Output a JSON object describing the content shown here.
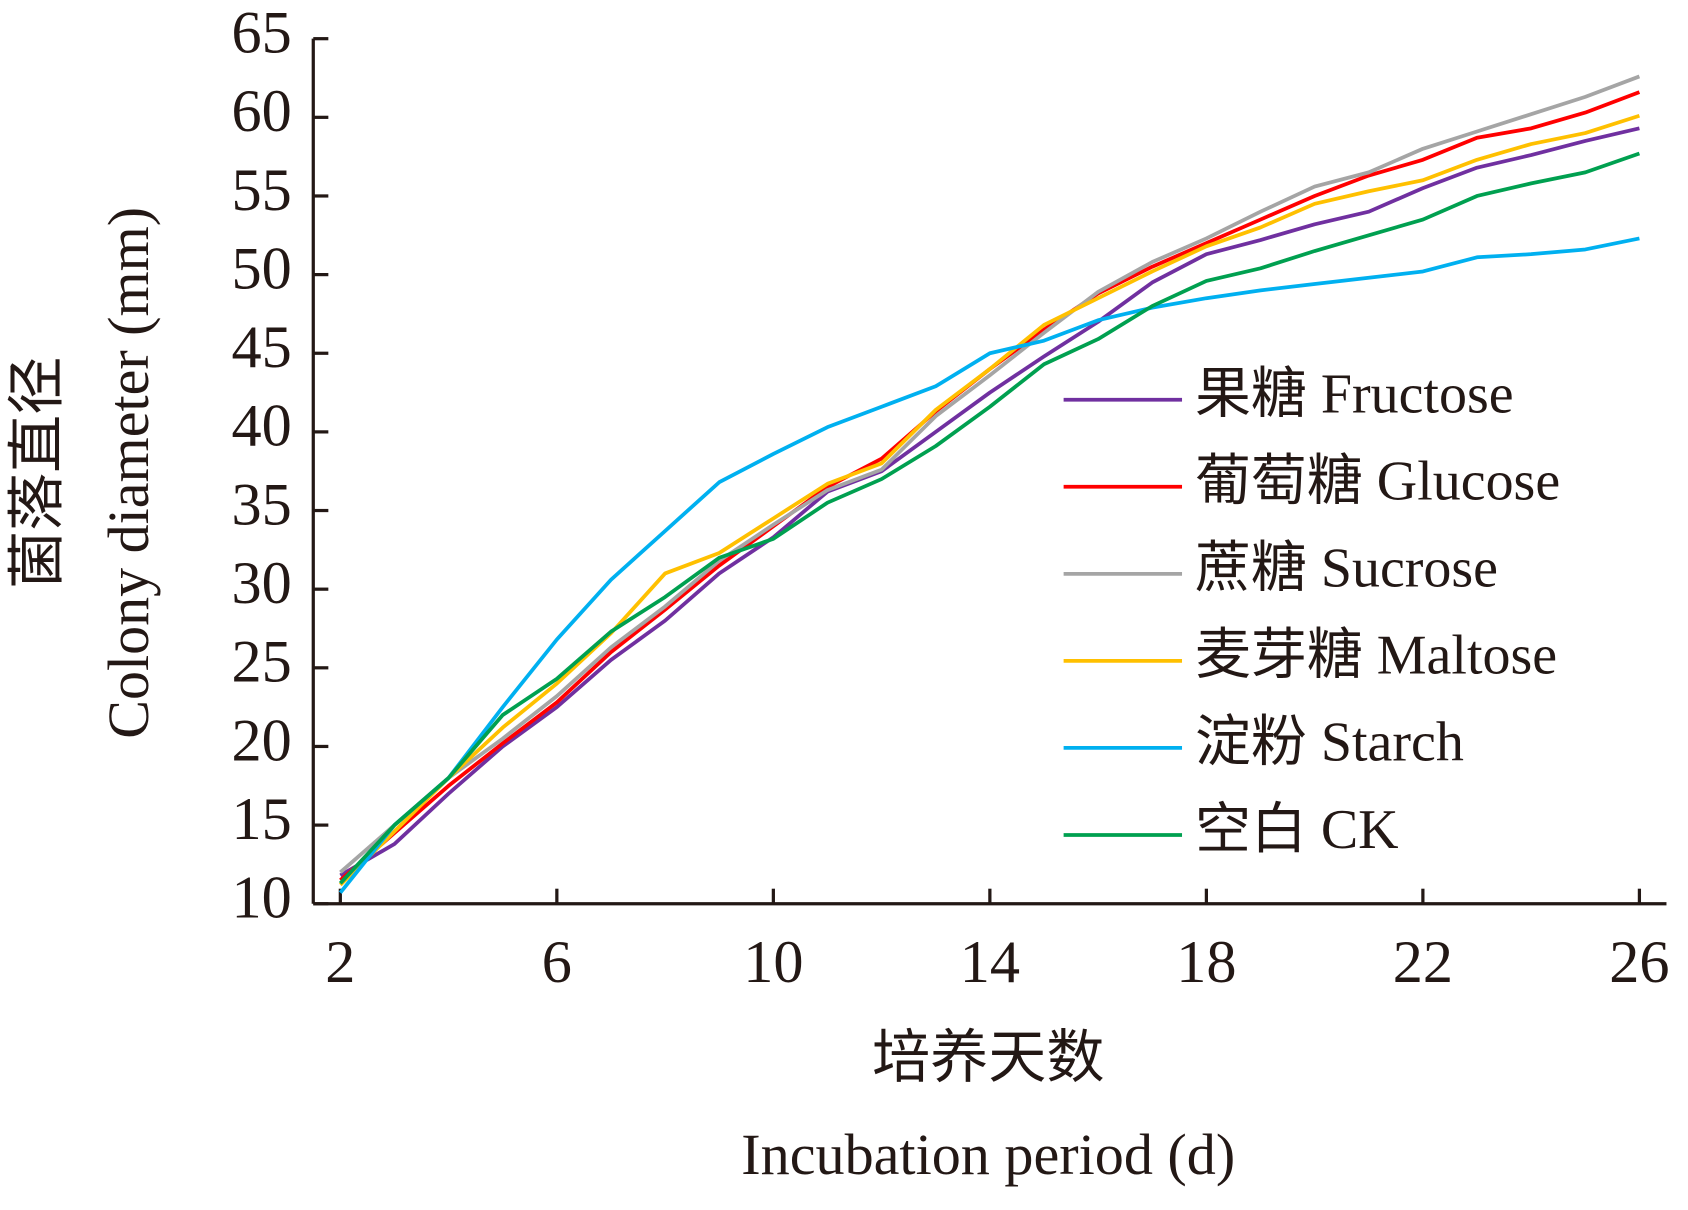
{
  "chart_data": {
    "type": "line",
    "xlabel": [
      "培养天数",
      "Incubation period (d)"
    ],
    "ylabel": [
      "菌落直径",
      "Colony diameter (mm)"
    ],
    "x": [
      2,
      3,
      4,
      5,
      6,
      7,
      8,
      9,
      10,
      11,
      12,
      13,
      14,
      15,
      16,
      17,
      18,
      19,
      20,
      21,
      22,
      23,
      24,
      25,
      26
    ],
    "xlim": [
      1.5,
      26.5
    ],
    "xticks": [
      2,
      6,
      10,
      14,
      18,
      22,
      26
    ],
    "ylim": [
      10,
      65
    ],
    "yticks": [
      10,
      15,
      20,
      25,
      30,
      35,
      40,
      45,
      50,
      55,
      60,
      65
    ],
    "series": [
      {
        "name": "果糖 Fructose",
        "color": "#7030a0",
        "values": [
          11.8,
          13.8,
          17,
          20,
          22.5,
          25.5,
          28,
          31,
          33.3,
          36.2,
          37.5,
          40,
          42.5,
          44.8,
          47,
          49.5,
          51.3,
          52.2,
          53.2,
          54,
          55.5,
          56.8,
          57.6,
          58.5,
          59.3
        ]
      },
      {
        "name": "葡萄糖 Glucose",
        "color": "#ff0000",
        "values": [
          11.5,
          14.5,
          17.5,
          20.2,
          22.8,
          26,
          28.7,
          31.5,
          34,
          36.5,
          38.3,
          41.3,
          44,
          46.5,
          48.8,
          50.5,
          52,
          53.5,
          55,
          56.3,
          57.3,
          58.7,
          59.3,
          60.3,
          61.6
        ]
      },
      {
        "name": "蔗糖 Sucrose",
        "color": "#a5a5a5",
        "values": [
          12,
          15,
          18,
          20.5,
          23.2,
          26.3,
          28.9,
          31.8,
          34.1,
          36.3,
          37.6,
          41,
          43.6,
          46.3,
          48.9,
          50.8,
          52.3,
          54,
          55.6,
          56.5,
          58,
          59.1,
          60.2,
          61.3,
          62.6
        ]
      },
      {
        "name": "麦芽糖 Maltose",
        "color": "#ffc000",
        "values": [
          11.2,
          14.6,
          18,
          21.2,
          24,
          27.2,
          31,
          32.3,
          34.5,
          36.7,
          38,
          41.4,
          44,
          46.8,
          48.5,
          50.2,
          51.8,
          53,
          54.5,
          55.3,
          56,
          57.3,
          58.3,
          59,
          60.1
        ]
      },
      {
        "name": "淀粉 Starch",
        "color": "#00b0f0",
        "values": [
          10.7,
          15,
          18,
          22.5,
          26.8,
          30.6,
          33.7,
          36.8,
          38.6,
          40.3,
          41.6,
          42.9,
          45,
          45.8,
          47.1,
          47.9,
          48.5,
          49,
          49.4,
          49.8,
          50.2,
          51.1,
          51.3,
          51.6,
          52.3
        ]
      },
      {
        "name": "空白 CK",
        "color": "#00a050",
        "values": [
          11.3,
          15,
          18,
          22,
          24.3,
          27.3,
          29.5,
          32,
          33.2,
          35.5,
          37,
          39.1,
          41.6,
          44.3,
          45.9,
          48,
          49.6,
          50.4,
          51.5,
          52.5,
          53.5,
          55,
          55.8,
          56.5,
          57.7
        ]
      }
    ]
  }
}
